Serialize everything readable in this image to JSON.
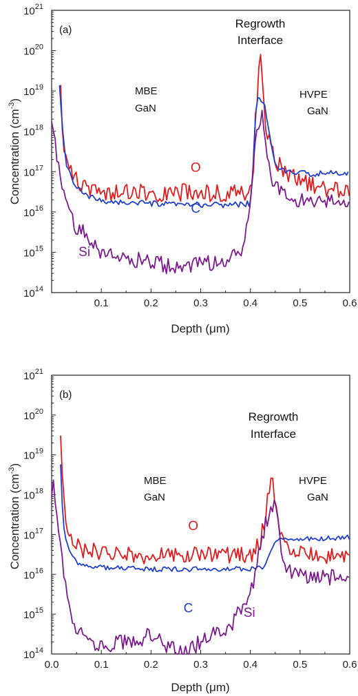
{
  "chart_data": [
    {
      "type": "line",
      "panel_label": "(a)",
      "xlabel": "Depth (μm)",
      "ylabel_main": "Concentration (cm",
      "ylabel_sup": "-3",
      "ylabel_end": ")",
      "xlim": [
        0.0,
        0.6
      ],
      "ylim_exp": [
        14,
        21
      ],
      "log_y": true,
      "x_ticks": [
        0.1,
        0.2,
        0.3,
        0.4,
        0.5,
        0.6
      ],
      "x_tick_labels": [
        "0.1",
        "0.2",
        "0.3",
        "0.4",
        "0.5",
        "0.6"
      ],
      "y_tick_exps": [
        14,
        15,
        16,
        17,
        18,
        19,
        20,
        21
      ],
      "y_tick_base": "10",
      "annotations": {
        "regrowth_line1": "Regrowth",
        "regrowth_line2": "Interface",
        "mbe_line1": "MBE",
        "mbe_line2": "GaN",
        "hvpe_line1": "HVPE",
        "hvpe_line2": "GaN"
      },
      "series": [
        {
          "name": "O",
          "color": "#e31a1c",
          "label_at": [
            0.29,
            1e+17
          ],
          "points": [
            [
              0.018,
              1.2e+19
            ],
            [
              0.02,
              2e+18
            ],
            [
              0.025,
              5e+17
            ],
            [
              0.03,
              2e+17
            ],
            [
              0.04,
              1e+17
            ],
            [
              0.05,
              6e+16
            ],
            [
              0.07,
              4e+16
            ],
            [
              0.1,
              3.2e+16
            ],
            [
              0.15,
              3e+16
            ],
            [
              0.2,
              3e+16
            ],
            [
              0.25,
              3e+16
            ],
            [
              0.3,
              3e+16
            ],
            [
              0.35,
              3e+16
            ],
            [
              0.4,
              3.2e+16
            ],
            [
              0.405,
              4e+16
            ],
            [
              0.41,
              2e+18
            ],
            [
              0.415,
              1e+19
            ],
            [
              0.42,
              1e+20
            ],
            [
              0.425,
              1.5e+19
            ],
            [
              0.43,
              2e+18
            ],
            [
              0.44,
              4e+17
            ],
            [
              0.45,
              2e+17
            ],
            [
              0.47,
              1e+17
            ],
            [
              0.5,
              6e+16
            ],
            [
              0.55,
              4e+16
            ],
            [
              0.6,
              3e+16
            ]
          ],
          "noise": 0.22
        },
        {
          "name": "C",
          "color": "#1f3fd0",
          "label_at": [
            0.29,
            9500000000000000.0
          ],
          "points": [
            [
              0.016,
              1.3e+19
            ],
            [
              0.02,
              2e+18
            ],
            [
              0.025,
              4e+17
            ],
            [
              0.03,
              1.5e+17
            ],
            [
              0.04,
              7e+16
            ],
            [
              0.05,
              4e+16
            ],
            [
              0.07,
              2.5e+16
            ],
            [
              0.1,
              1.9e+16
            ],
            [
              0.15,
              1.7e+16
            ],
            [
              0.2,
              1.6e+16
            ],
            [
              0.25,
              1.5e+16
            ],
            [
              0.3,
              1.5e+16
            ],
            [
              0.35,
              1.5e+16
            ],
            [
              0.4,
              1.6e+16
            ],
            [
              0.405,
              1e+17
            ],
            [
              0.41,
              2e+18
            ],
            [
              0.415,
              7e+18
            ],
            [
              0.42,
              6e+18
            ],
            [
              0.43,
              4e+18
            ],
            [
              0.44,
              6e+17
            ],
            [
              0.45,
              1.5e+17
            ],
            [
              0.47,
              1e+17
            ],
            [
              0.5,
              9e+16
            ],
            [
              0.55,
              9e+16
            ],
            [
              0.6,
              9e+16
            ]
          ],
          "noise": 0.07
        },
        {
          "name": "Si",
          "color": "#7b1a8e",
          "label_at": [
            0.066,
            800000000000000.0
          ],
          "points": [
            [
              0.0,
              1.5e+18
            ],
            [
              0.008,
              5e+17
            ],
            [
              0.015,
              1e+17
            ],
            [
              0.02,
              3e+16
            ],
            [
              0.03,
              1.5e+16
            ],
            [
              0.04,
              8000000000000000.0
            ],
            [
              0.05,
              4000000000000000.0
            ],
            [
              0.07,
              3000000000000000.0
            ],
            [
              0.08,
              2000000000000000.0
            ],
            [
              0.1,
              1000000000000000.0
            ],
            [
              0.15,
              700000000000000.0
            ],
            [
              0.2,
              600000000000000.0
            ],
            [
              0.25,
              400000000000000.0
            ],
            [
              0.3,
              500000000000000.0
            ],
            [
              0.35,
              600000000000000.0
            ],
            [
              0.38,
              900000000000000.0
            ],
            [
              0.39,
              3000000000000000.0
            ],
            [
              0.4,
              1e+16
            ],
            [
              0.405,
              1e+17
            ],
            [
              0.41,
              1e+18
            ],
            [
              0.42,
              2e+18
            ],
            [
              0.425,
              2.8e+18
            ],
            [
              0.43,
              5e+17
            ],
            [
              0.44,
              1e+17
            ],
            [
              0.45,
              4e+16
            ],
            [
              0.47,
              2.5e+16
            ],
            [
              0.5,
              2e+16
            ],
            [
              0.55,
              1.8e+16
            ],
            [
              0.6,
              1.8e+16
            ]
          ],
          "noise": 0.2
        }
      ]
    },
    {
      "type": "line",
      "panel_label": "(b)",
      "xlabel": "Depth (μm)",
      "ylabel_main": "Concentration (cm",
      "ylabel_sup": "-3",
      "ylabel_end": ")",
      "xlim": [
        0.0,
        0.6
      ],
      "ylim_exp": [
        14,
        21
      ],
      "log_y": true,
      "x_ticks": [
        0.0,
        0.1,
        0.2,
        0.3,
        0.4,
        0.5,
        0.6
      ],
      "x_tick_labels": [
        "0.0",
        "0.1",
        "0.2",
        "0.3",
        "0.4",
        "0.5",
        "0.6"
      ],
      "y_tick_exps": [
        14,
        15,
        16,
        17,
        18,
        19,
        20,
        21
      ],
      "y_tick_base": "10",
      "annotations": {
        "regrowth_line1": "Regrowth",
        "regrowth_line2": "Interface",
        "mbe_line1": "MBE",
        "mbe_line2": "GaN",
        "hvpe_line1": "HVPE",
        "hvpe_line2": "GaN"
      },
      "series": [
        {
          "name": "O",
          "color": "#e31a1c",
          "label_at": [
            0.285,
            1.3e+17
          ],
          "points": [
            [
              0.018,
              3.5e+19
            ],
            [
              0.02,
              5e+18
            ],
            [
              0.025,
              8e+17
            ],
            [
              0.03,
              2e+17
            ],
            [
              0.04,
              8e+16
            ],
            [
              0.05,
              5e+16
            ],
            [
              0.07,
              4e+16
            ],
            [
              0.1,
              3.5e+16
            ],
            [
              0.15,
              3.2e+16
            ],
            [
              0.2,
              3e+16
            ],
            [
              0.25,
              3e+16
            ],
            [
              0.3,
              3e+16
            ],
            [
              0.35,
              3e+16
            ],
            [
              0.4,
              3e+16
            ],
            [
              0.42,
              6e+16
            ],
            [
              0.43,
              3e+17
            ],
            [
              0.44,
              2.5e+18
            ],
            [
              0.445,
              2.2e+18
            ],
            [
              0.45,
              5e+17
            ],
            [
              0.46,
              1e+17
            ],
            [
              0.48,
              4e+16
            ],
            [
              0.5,
              3.5e+16
            ],
            [
              0.55,
              3e+16
            ],
            [
              0.6,
              2.8e+16
            ]
          ],
          "noise": 0.22
        },
        {
          "name": "C",
          "color": "#1f3fd0",
          "label_at": [
            0.275,
            1100000000000000.0
          ],
          "points": [
            [
              0.018,
              6e+18
            ],
            [
              0.02,
              1e+18
            ],
            [
              0.025,
              1.5e+17
            ],
            [
              0.03,
              6e+16
            ],
            [
              0.04,
              3e+16
            ],
            [
              0.05,
              2e+16
            ],
            [
              0.07,
              1.6e+16
            ],
            [
              0.1,
              1.5e+16
            ],
            [
              0.15,
              1.4e+16
            ],
            [
              0.2,
              1.35e+16
            ],
            [
              0.25,
              1.35e+16
            ],
            [
              0.3,
              1.35e+16
            ],
            [
              0.35,
              1.35e+16
            ],
            [
              0.4,
              1.4e+16
            ],
            [
              0.43,
              1.6e+16
            ],
            [
              0.445,
              5e+16
            ],
            [
              0.455,
              8e+16
            ],
            [
              0.5,
              8e+16
            ],
            [
              0.55,
              8e+16
            ],
            [
              0.6,
              8.5e+16
            ]
          ],
          "noise": 0.06
        },
        {
          "name": "Si",
          "color": "#7b1a8e",
          "label_at": [
            0.398,
            850000000000000.0
          ],
          "points": [
            [
              0.0,
              1e+18
            ],
            [
              0.005,
              2e+18
            ],
            [
              0.01,
              3e+17
            ],
            [
              0.02,
              3e+16
            ],
            [
              0.03,
              5000000000000000.0
            ],
            [
              0.04,
              1000000000000000.0
            ],
            [
              0.05,
              500000000000000.0
            ],
            [
              0.07,
              300000000000000.0
            ],
            [
              0.1,
              150000000000000.0
            ],
            [
              0.15,
              200000000000000.0
            ],
            [
              0.2,
              300000000000000.0
            ],
            [
              0.25,
              120000000000000.0
            ],
            [
              0.27,
              100000000000000.0
            ],
            [
              0.3,
              200000000000000.0
            ],
            [
              0.33,
              300000000000000.0
            ],
            [
              0.36,
              500000000000000.0
            ],
            [
              0.39,
              2000000000000000.0
            ],
            [
              0.41,
              1e+16
            ],
            [
              0.42,
              5e+16
            ],
            [
              0.43,
              2e+17
            ],
            [
              0.445,
              5e+17
            ],
            [
              0.455,
              4e+17
            ],
            [
              0.46,
              5e+16
            ],
            [
              0.47,
              1.5e+16
            ],
            [
              0.5,
              1e+16
            ],
            [
              0.55,
              9000000000000000.0
            ],
            [
              0.6,
              9000000000000000.0
            ]
          ],
          "noise": 0.22
        }
      ]
    }
  ]
}
